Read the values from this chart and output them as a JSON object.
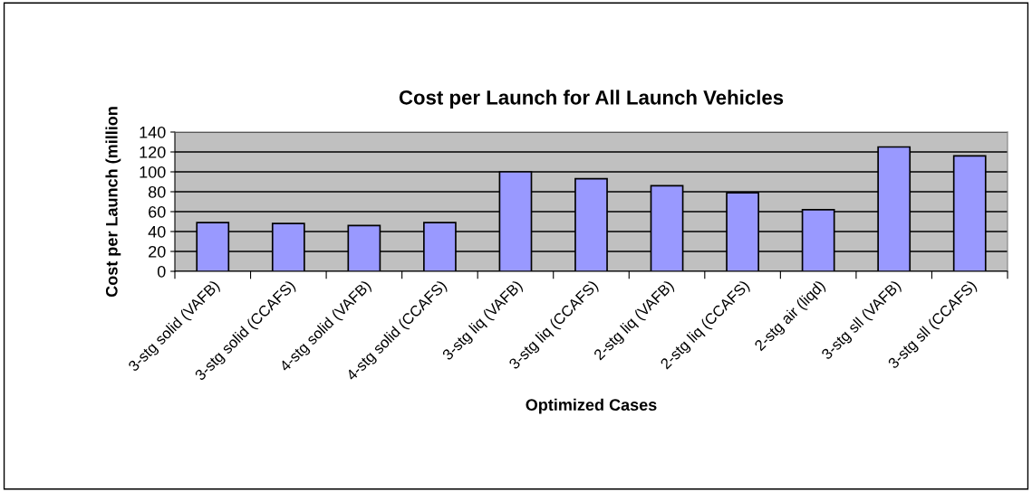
{
  "chart_data": {
    "type": "bar",
    "title": "Cost per Launch for All Launch Vehicles",
    "xlabel": "Optimized Cases",
    "ylabel": "Cost per Launch (million",
    "categories": [
      "3-stg solid (VAFB)",
      "3-stg solid (CCAFS)",
      "4-stg solid (VAFB)",
      "4-stg solid (CCAFS)",
      "3-stg liq (VAFB)",
      "3-stg liq (CCAFS)",
      "2-stg liq (VAFB)",
      "2-stg liq (CCAFS)",
      "2-stg air (liqd)",
      "3-stg sll (VAFB)",
      "3-stg sll (CCAFS)"
    ],
    "values": [
      49,
      48,
      46,
      49,
      100,
      93,
      86,
      79,
      62,
      125,
      116
    ],
    "color": "#9999ff",
    "ylim": [
      0,
      140
    ],
    "yticks": [
      0,
      20,
      40,
      60,
      80,
      100,
      120,
      140
    ],
    "grid": "y",
    "legend": false
  }
}
